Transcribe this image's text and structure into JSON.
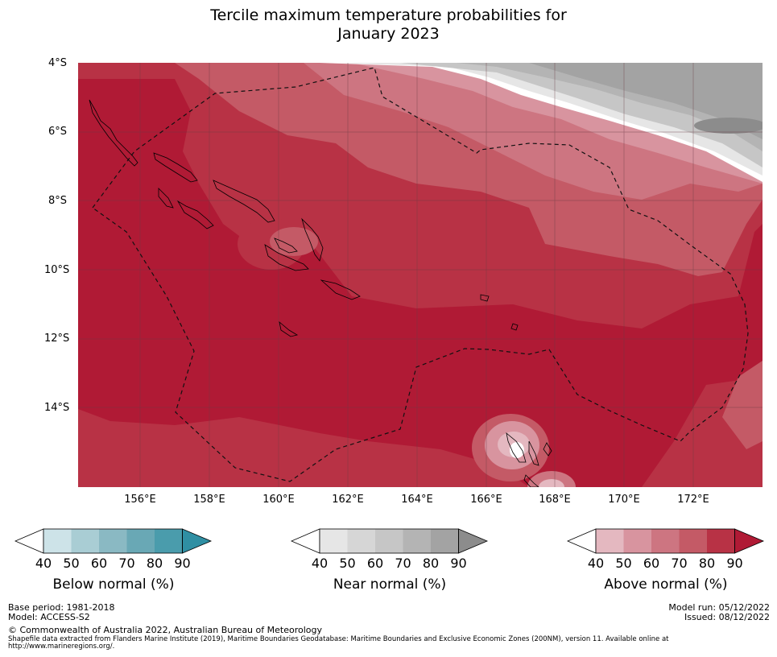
{
  "title": {
    "line1": "Tercile maximum temperature probabilities for",
    "line2": "January 2023"
  },
  "map": {
    "lat_labels": [
      "4°S",
      "6°S",
      "8°S",
      "10°S",
      "12°S",
      "14°S"
    ],
    "lon_labels": [
      "156°E",
      "158°E",
      "160°E",
      "162°E",
      "164°E",
      "166°E",
      "168°E",
      "170°E",
      "172°E"
    ]
  },
  "legends": {
    "ticks": [
      "40",
      "50",
      "60",
      "70",
      "80",
      "90"
    ],
    "below": {
      "title": "Below normal (%)",
      "colors": [
        "#cde3e8",
        "#a9cdd4",
        "#8ab9c3",
        "#69a8b5",
        "#4a9cac",
        "#2f8fa3"
      ]
    },
    "near": {
      "title": "Near normal (%)",
      "colors": [
        "#e6e6e6",
        "#d6d6d6",
        "#c6c6c6",
        "#b4b4b4",
        "#a3a3a3",
        "#8c8c8c"
      ]
    },
    "above": {
      "title": "Above normal (%)",
      "colors": [
        "#e4b8c0",
        "#d8949f",
        "#cd7581",
        "#c45a66",
        "#b83245",
        "#b01a35"
      ]
    }
  },
  "footer": {
    "base_period": "Base period: 1981-2018",
    "model": "Model: ACCESS-S2",
    "model_run": "Model run: 05/12/2022",
    "issued": "Issued: 08/12/2022",
    "copyright": "© Commonwealth of Australia 2022, Australian Bureau of Meteorology",
    "shapefile_line1": "Shapefile data extracted from Flanders Marine Institute (2019), Maritime Boundaries Geodatabase: Maritime Boundaries and Exclusive Economic Zones (200NM), version 11. Available online at",
    "shapefile_line2": "http://www.marineregions.org/."
  }
}
